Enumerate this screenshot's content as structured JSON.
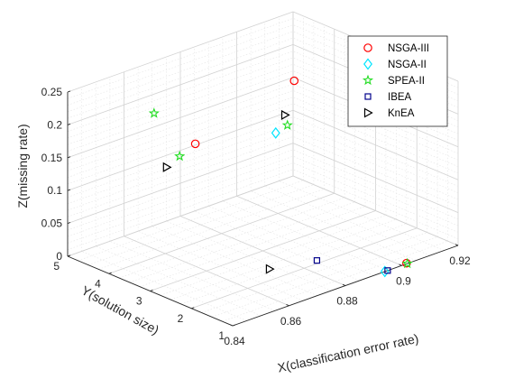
{
  "chart_data": {
    "type": "scatter3d",
    "xlabel": "X(classification error rate)",
    "ylabel": "Y(solution size)",
    "zlabel": "Z(missing rate)",
    "xlim": [
      0.84,
      0.92
    ],
    "ylim": [
      1,
      5
    ],
    "zlim": [
      0,
      0.25
    ],
    "xticks": [
      "0.84",
      "0.86",
      "0.88",
      "0.9",
      "0.92"
    ],
    "yticks": [
      "1",
      "2",
      "3",
      "4",
      "5"
    ],
    "zticks": [
      "0",
      "0.05",
      "0.1",
      "0.15",
      "0.2",
      "0.25"
    ],
    "grid": true,
    "legend_position": "top-right",
    "series": [
      {
        "name": "NSGA-III",
        "marker": "circle",
        "color": "#ff0000",
        "points": [
          [
            0.849,
            2.52,
            0.223
          ],
          [
            0.904,
            3.88,
            0.199
          ],
          [
            0.902,
            1.02,
            0.0
          ]
        ]
      },
      {
        "name": "NSGA-II",
        "marker": "diamond",
        "color": "#00e5ff",
        "points": [
          [
            0.867,
            1.8,
            0.231
          ],
          [
            0.894,
            1.0,
            0.0
          ]
        ]
      },
      {
        "name": "SPEA-II",
        "marker": "pentagram",
        "color": "#22dd22",
        "points": [
          [
            0.849,
            3.52,
            0.243
          ],
          [
            0.849,
            2.9,
            0.194
          ],
          [
            0.877,
            2.2,
            0.217
          ],
          [
            0.902,
            1.0,
            0.0
          ]
        ]
      },
      {
        "name": "IBEA",
        "marker": "square",
        "color": "#00008b",
        "points": [
          [
            0.886,
            2.1,
            0.0
          ],
          [
            0.895,
            1.0,
            0.0
          ]
        ]
      },
      {
        "name": "KnEA",
        "marker": "triangle-right",
        "color": "#000000",
        "points": [
          [
            0.84,
            2.6,
            0.199
          ],
          [
            0.871,
            1.85,
            0.251
          ],
          [
            0.873,
            2.36,
            0.0
          ]
        ]
      }
    ]
  }
}
